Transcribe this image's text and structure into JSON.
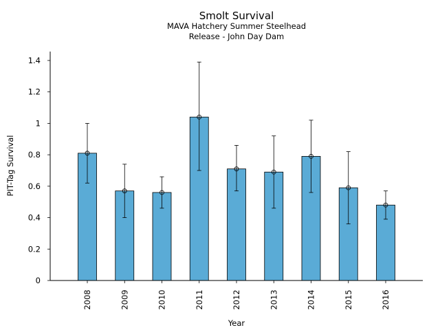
{
  "chart_data": {
    "type": "bar",
    "title": "Smolt Survival",
    "subtitle_lines": [
      "MAVA Hatchery Summer Steelhead",
      "Release - John Day Dam"
    ],
    "xlabel": "Year",
    "ylabel": "PIT-Tag Survival",
    "categories": [
      "2008",
      "2009",
      "2010",
      "2011",
      "2012",
      "2013",
      "2014",
      "2015",
      "2016"
    ],
    "values": [
      0.81,
      0.57,
      0.56,
      1.04,
      0.71,
      0.69,
      0.79,
      0.59,
      0.48
    ],
    "error_low": [
      0.62,
      0.4,
      0.46,
      0.7,
      0.57,
      0.46,
      0.56,
      0.36,
      0.39
    ],
    "error_high": [
      1.0,
      0.74,
      0.66,
      1.39,
      0.86,
      0.92,
      1.02,
      0.82,
      0.57
    ],
    "ylim": [
      0,
      1.46
    ],
    "yticks": [
      0,
      0.2,
      0.4,
      0.6,
      0.8,
      1,
      1.2,
      1.4
    ],
    "ytick_labels": [
      "0",
      "0.2",
      "0.4",
      "0.6",
      "0.8",
      "1",
      "1.2",
      "1.4"
    ],
    "bar_color": "#5aabd6",
    "edge_color": "#000000",
    "grid": false,
    "legend": "none"
  }
}
